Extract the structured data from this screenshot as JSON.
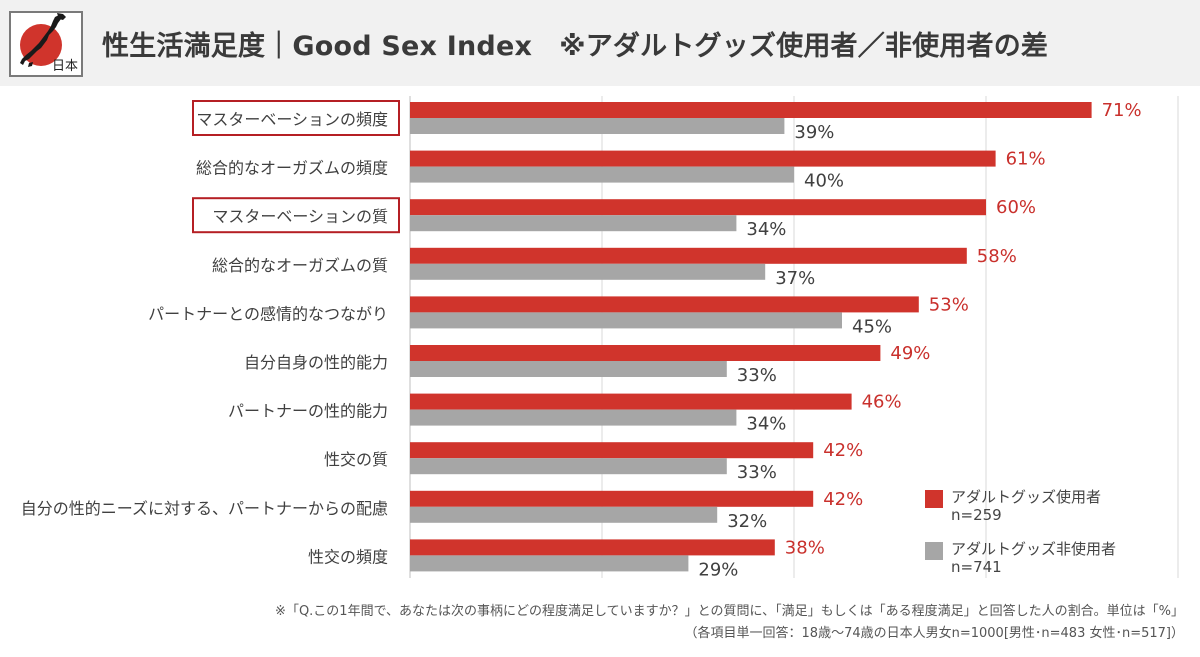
{
  "header": {
    "title": "性生活満足度｜Good Sex Index　※アダルトグッズ使用者／非使用者の差",
    "logo_label": "日本"
  },
  "colors": {
    "users": "#d0342c",
    "non_users": "#a6a6a6",
    "highlight_box": "#b51f24",
    "user_label": "#c9302c",
    "non_user_label": "#404040"
  },
  "legend": {
    "users": {
      "label": "アダルトグッズ使用者",
      "n": "n=259"
    },
    "non_users": {
      "label": "アダルトグッズ非使用者",
      "n": "n=741"
    }
  },
  "footnotes": {
    "line1": "※「Q.この1年間で、あなたは次の事柄にどの程度満足していますか？」との質問に、「満足」もしくは「ある程度満足」と回答した人の割合。単位は「%」",
    "line2": "（各項目単一回答：18歳〜74歳の日本人男女n=1000[男性･n=483 女性･n=517]）"
  },
  "chart_data": {
    "type": "bar",
    "orientation": "horizontal",
    "categories": [
      "マスターベーションの頻度",
      "総合的なオーガズムの頻度",
      "マスターベーションの質",
      "総合的なオーガズムの質",
      "パートナーとの感情的なつながり",
      "自分自身の性的能力",
      "パートナーの性的能力",
      "性交の質",
      "自分の性的ニーズに対する、パートナーからの配慮",
      "性交の頻度"
    ],
    "highlighted_categories": [
      0,
      2
    ],
    "series": [
      {
        "name": "アダルトグッズ使用者",
        "values": [
          71,
          61,
          60,
          58,
          53,
          49,
          46,
          42,
          42,
          38
        ],
        "labels": [
          "71%",
          "61%",
          "60%",
          "58%",
          "53%",
          "49%",
          "46%",
          "42%",
          "42%",
          "38%"
        ]
      },
      {
        "name": "アダルトグッズ非使用者",
        "values": [
          39,
          40,
          34,
          37,
          45,
          33,
          34,
          33,
          32,
          29
        ],
        "labels": [
          "39%",
          "40%",
          "34%",
          "37%",
          "45%",
          "33%",
          "34%",
          "33%",
          "32%",
          "29%"
        ]
      }
    ],
    "xlim": [
      0,
      80
    ],
    "grid": true,
    "legend_position": "bottom-right"
  }
}
